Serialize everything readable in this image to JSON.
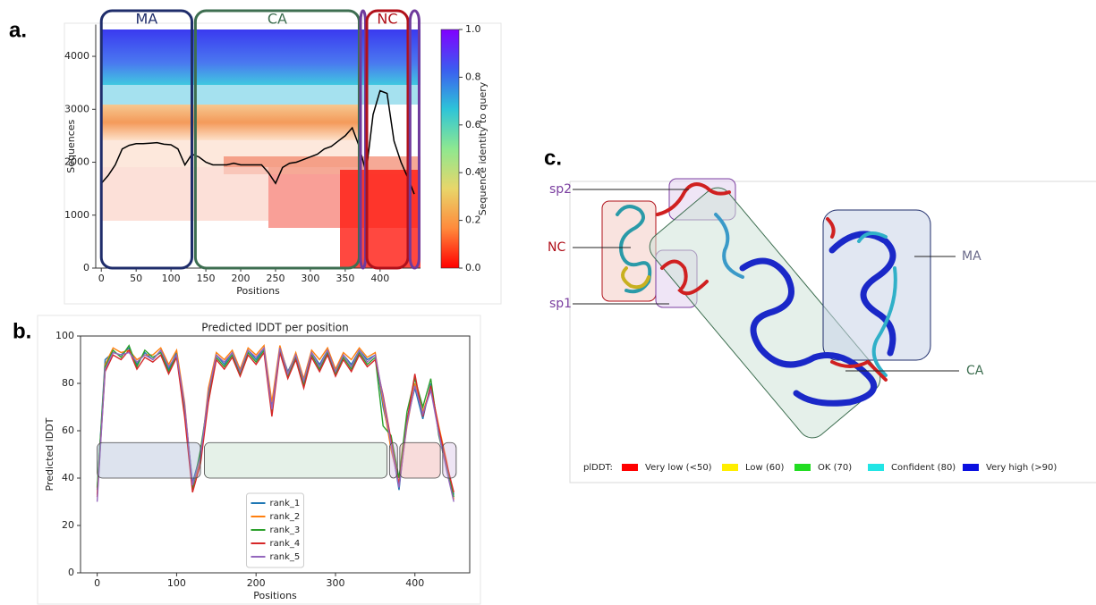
{
  "chart_data": [
    {
      "panel_label": "a.",
      "type": "heatmap",
      "xlabel": "Positions",
      "ylabel": "Sequences",
      "xlim": [
        -8,
        458
      ],
      "ylim": [
        0,
        4600
      ],
      "xticks": [
        0,
        50,
        100,
        150,
        200,
        250,
        300,
        350,
        400
      ],
      "yticks": [
        0,
        1000,
        2000,
        3000,
        4000
      ],
      "x": [
        0,
        10,
        20,
        30,
        40,
        50,
        60,
        70,
        80,
        90,
        100,
        110,
        120,
        130,
        140,
        150,
        160,
        170,
        180,
        190,
        200,
        210,
        220,
        230,
        240,
        250,
        260,
        270,
        280,
        290,
        300,
        310,
        320,
        330,
        340,
        350,
        360,
        370,
        380,
        390,
        400,
        410,
        420,
        430,
        440,
        449
      ],
      "values": [
        1600,
        1750,
        1950,
        2250,
        2320,
        2350,
        2350,
        2360,
        2370,
        2340,
        2330,
        2250,
        1950,
        2150,
        2100,
        2000,
        1950,
        1950,
        1950,
        1980,
        1950,
        1950,
        1950,
        1950,
        1800,
        1600,
        1900,
        1980,
        2000,
        2050,
        2100,
        2150,
        2250,
        2300,
        2400,
        2500,
        2650,
        2300,
        1800,
        2900,
        3350,
        3300,
        2400,
        2000,
        1700,
        1400
      ],
      "color": "#000000",
      "colorbar": {
        "label": "Sequence identity to query",
        "lim": [
          0,
          1
        ],
        "ticks": [
          {
            "value": 0,
            "label": "0.0"
          },
          {
            "value": 0.2,
            "label": "0.2"
          },
          {
            "value": 0.4,
            "label": "0.4"
          },
          {
            "value": 0.6,
            "label": "0.6"
          },
          {
            "value": 0.8,
            "label": "0.8"
          },
          {
            "value": 1,
            "label": "1.0"
          }
        ],
        "colors": [
          "#ff0000",
          "#ff8a3c",
          "#e8d66a",
          "#8ee890",
          "#2ec4d8",
          "#3c5cf0",
          "#8000ff"
        ]
      },
      "regions": [
        {
          "label": "MA",
          "start": 0,
          "end": 130,
          "color": "#1f2d6b"
        },
        {
          "label": "CA",
          "start": 135,
          "end": 370,
          "color": "#3d6e50"
        },
        {
          "start": 372,
          "end": 379,
          "color": "#6f3a9c"
        },
        {
          "label": "NC",
          "start": 381,
          "end": 440,
          "color": "#b0101a"
        },
        {
          "start": 443,
          "end": 456,
          "color": "#6f3a9c"
        }
      ]
    },
    {
      "panel_label": "b.",
      "type": "line",
      "title": "Predicted lDDT per position",
      "xlabel": "Positions",
      "ylabel": "Predicted lDDT",
      "xlim": [
        -21,
        469
      ],
      "ylim": [
        0,
        100
      ],
      "xticks": [
        0,
        100,
        200,
        300,
        400
      ],
      "yticks": [
        0,
        20,
        40,
        60,
        80,
        100
      ],
      "legend": "lower center",
      "x": [
        0,
        10,
        20,
        30,
        40,
        50,
        60,
        70,
        80,
        90,
        100,
        110,
        120,
        130,
        140,
        150,
        160,
        170,
        180,
        190,
        200,
        210,
        220,
        230,
        240,
        250,
        260,
        270,
        280,
        290,
        300,
        310,
        320,
        330,
        340,
        350,
        360,
        370,
        380,
        390,
        400,
        410,
        420,
        430,
        440,
        449
      ],
      "series": [
        {
          "name": "rank_1",
          "color": "#1f77b4",
          "values": [
            35,
            90,
            93,
            92,
            95,
            88,
            93,
            90,
            94,
            86,
            93,
            70,
            38,
            50,
            75,
            92,
            88,
            93,
            85,
            94,
            90,
            95,
            70,
            95,
            85,
            92,
            80,
            93,
            88,
            94,
            85,
            92,
            88,
            94,
            90,
            92,
            70,
            55,
            35,
            65,
            78,
            65,
            80,
            60,
            45,
            33
          ]
        },
        {
          "name": "rank_2",
          "color": "#ff7f0e",
          "values": [
            33,
            88,
            95,
            93,
            94,
            90,
            92,
            92,
            95,
            88,
            94,
            72,
            36,
            48,
            78,
            93,
            90,
            94,
            86,
            95,
            92,
            96,
            72,
            96,
            84,
            93,
            82,
            94,
            90,
            95,
            86,
            93,
            90,
            95,
            91,
            93,
            72,
            52,
            38,
            62,
            80,
            68,
            78,
            62,
            47,
            31
          ]
        },
        {
          "name": "rank_3",
          "color": "#2ca02c",
          "values": [
            36,
            87,
            94,
            91,
            96,
            87,
            94,
            91,
            93,
            85,
            92,
            68,
            35,
            52,
            74,
            91,
            87,
            92,
            84,
            93,
            89,
            94,
            68,
            94,
            83,
            91,
            79,
            92,
            86,
            93,
            84,
            91,
            86,
            93,
            88,
            91,
            62,
            58,
            40,
            68,
            82,
            70,
            82,
            58,
            44,
            32
          ]
        },
        {
          "name": "rank_4",
          "color": "#d62728",
          "values": [
            32,
            85,
            92,
            90,
            94,
            86,
            91,
            89,
            92,
            84,
            91,
            66,
            34,
            46,
            72,
            90,
            86,
            91,
            83,
            92,
            88,
            93,
            66,
            93,
            82,
            90,
            78,
            91,
            85,
            92,
            83,
            90,
            85,
            92,
            87,
            90,
            75,
            56,
            37,
            64,
            84,
            66,
            79,
            61,
            46,
            34
          ]
        },
        {
          "name": "rank_5",
          "color": "#9467bd",
          "values": [
            30,
            86,
            93,
            92,
            93,
            89,
            92,
            90,
            94,
            87,
            92,
            71,
            37,
            49,
            76,
            92,
            89,
            93,
            85,
            94,
            91,
            95,
            69,
            95,
            84,
            92,
            81,
            93,
            87,
            94,
            85,
            92,
            87,
            94,
            89,
            92,
            74,
            54,
            36,
            63,
            79,
            67,
            77,
            59,
            43,
            30
          ]
        }
      ],
      "regions": [
        {
          "start": 0,
          "end": 130,
          "ymin": 40,
          "ymax": 55,
          "color": "#8fa3c8"
        },
        {
          "start": 135,
          "end": 365,
          "ymin": 40,
          "ymax": 55,
          "color": "#a8d0b4"
        },
        {
          "start": 368,
          "end": 378,
          "ymin": 40,
          "ymax": 55,
          "color": "#c8a8dc"
        },
        {
          "start": 381,
          "end": 432,
          "ymin": 40,
          "ymax": 55,
          "color": "#e88c88"
        },
        {
          "start": 435,
          "end": 452,
          "ymin": 40,
          "ymax": 55,
          "color": "#c8a8dc"
        }
      ]
    }
  ],
  "structure": {
    "panel_label": "c.",
    "labels": [
      {
        "text": "sp2",
        "color": "#7b3fa0"
      },
      {
        "text": "NC",
        "color": "#b0101a"
      },
      {
        "text": "sp1",
        "color": "#7b3fa0"
      },
      {
        "text": "MA",
        "color": "#6a6a8a"
      },
      {
        "text": "CA",
        "color": "#3d6e50"
      }
    ],
    "legend": {
      "title": "plDDT:",
      "items": [
        {
          "label": "Very low (<50)",
          "color": "#ff0000"
        },
        {
          "label": "Low (60)",
          "color": "#ffee00"
        },
        {
          "label": "OK (70)",
          "color": "#22dd22"
        },
        {
          "label": "Confident (80)",
          "color": "#22e5e5"
        },
        {
          "label": "Very high (>90)",
          "color": "#0a10e0"
        }
      ]
    }
  }
}
